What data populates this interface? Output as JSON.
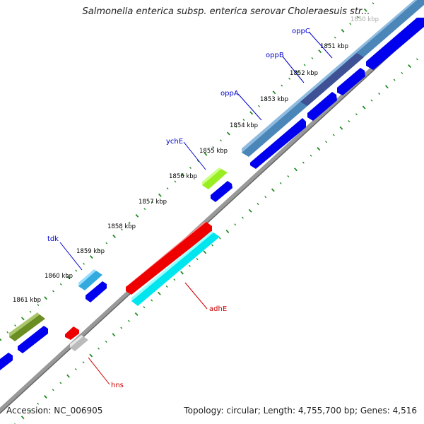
{
  "title": "Salmonella enterica subsp. enterica serovar Choleraesuis str...",
  "footer": {
    "accession": "Accession: NC_006905",
    "summary": "Topology: circular; Length: 4,755,700 bp; Genes: 4,516"
  },
  "scale_labels": [
    "1850 kbp",
    "1851 kbp",
    "1852 kbp",
    "1853 kbp",
    "1854 kbp",
    "1855 kbp",
    "1856 kbp",
    "1857 kbp",
    "1858 kbp",
    "1859 kbp",
    "1860 kbp",
    "1861 kbp"
  ],
  "genes": [
    {
      "name": "oppC",
      "color": "#0000cc"
    },
    {
      "name": "oppB",
      "color": "#0000cc"
    },
    {
      "name": "oppA",
      "color": "#0000cc"
    },
    {
      "name": "ychE",
      "color": "#0000cc"
    },
    {
      "name": "tdk",
      "color": "#0000cc"
    },
    {
      "name": "adhE",
      "color": "#cc0000"
    },
    {
      "name": "hns",
      "color": "#cc0000"
    }
  ],
  "colors": {
    "backbone": "#888888",
    "cds": "#0000ee",
    "tick": "#228b22",
    "operon": "#4a86b8",
    "ychE_feature": "#99ee22",
    "tdk_feature": "#33aadd",
    "olive_feature": "#6b8e23",
    "adhE_arrow": "#ee0000",
    "adhE_feature": "#00e5ee",
    "hns_arrow": "#ee0000",
    "hns_feature": "#bbbbbb"
  }
}
